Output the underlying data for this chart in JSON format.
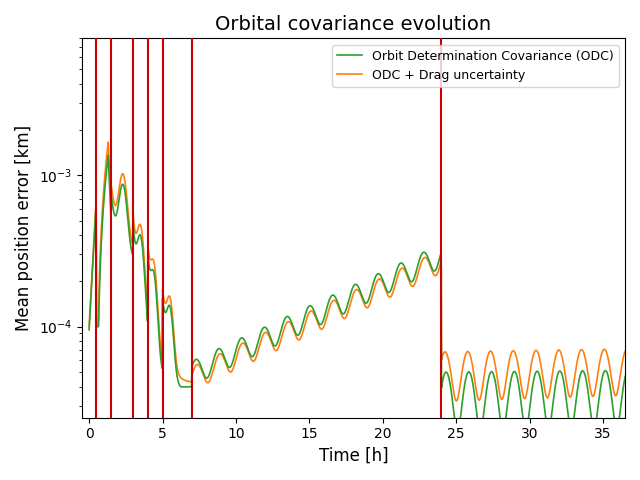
{
  "title": "Orbital covariance evolution",
  "xlabel": "Time [h]",
  "ylabel": "Mean position error [km]",
  "legend_odc": "Orbit Determination Covariance (ODC)",
  "legend_drag": "ODC + Drag uncertainty",
  "color_odc": "#2ca02c",
  "color_drag": "#ff7f0e",
  "color_vlines": "#cc0000",
  "vlines": [
    0.5,
    1.5,
    3.0,
    4.0,
    5.0,
    7.0,
    24.0
  ],
  "xlim": [
    -0.5,
    36.5
  ],
  "ylim": [
    2.5e-05,
    0.008
  ],
  "xticks": [
    0,
    5,
    10,
    15,
    20,
    25,
    30,
    35
  ],
  "figsize": [
    6.4,
    4.8
  ],
  "dpi": 100
}
